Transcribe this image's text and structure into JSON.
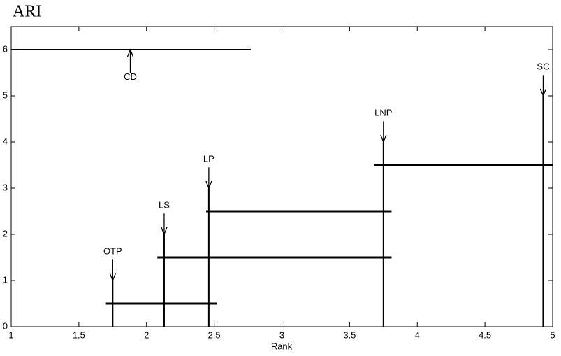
{
  "chart_data": {
    "type": "cd",
    "title": "ARI",
    "xlabel": "Rank",
    "xlim": [
      1,
      5
    ],
    "ylim": [
      0,
      6.5
    ],
    "xticks": [
      1,
      1.5,
      2,
      2.5,
      3,
      3.5,
      4,
      4.5,
      5
    ],
    "yticks": [
      0,
      1,
      2,
      3,
      4,
      5,
      6
    ],
    "categories": [
      "OTP",
      "LS",
      "LP",
      "LNP",
      "SC"
    ],
    "values": [
      1.75,
      2.13,
      2.46,
      3.75,
      4.93
    ],
    "stem_heights": [
      1,
      2,
      3,
      4,
      5
    ],
    "cd": {
      "label": "CD",
      "start": 1,
      "end": 2.77,
      "y": 6,
      "arrow_x": 1.88
    },
    "cliques": [
      {
        "start": 1.7,
        "end": 2.52,
        "y": 0.5
      },
      {
        "start": 2.08,
        "end": 3.81,
        "y": 1.5
      },
      {
        "start": 2.44,
        "end": 3.81,
        "y": 2.5
      },
      {
        "start": 3.68,
        "end": 5.0,
        "y": 3.5
      }
    ],
    "color": "#000000"
  }
}
